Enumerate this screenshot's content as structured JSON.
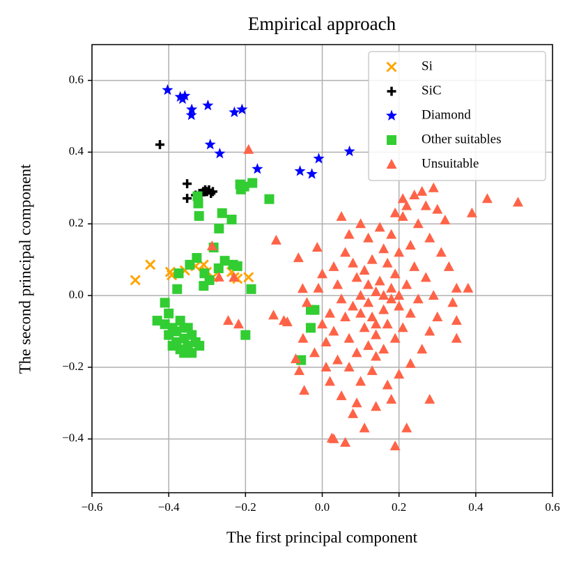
{
  "chart_data": {
    "type": "scatter",
    "title": "Empirical approach",
    "x_label": "The first principal component",
    "y_label": "The second principal component",
    "xlim": [
      -0.6,
      0.6
    ],
    "ylim": [
      -0.55,
      0.7
    ],
    "xticks": [
      {
        "value": -0.6,
        "label": "−0.6"
      },
      {
        "value": -0.4,
        "label": "−0.4"
      },
      {
        "value": -0.2,
        "label": "−0.2"
      },
      {
        "value": 0.0,
        "label": "0.0"
      },
      0.2,
      0.4,
      0.6
    ],
    "yticks": [
      {
        "value": -0.4,
        "label": "−0.4"
      },
      {
        "value": -0.2,
        "label": "−0.2"
      },
      {
        "value": 0.0,
        "label": "0.0"
      },
      0.2,
      0.4,
      0.6
    ],
    "grid": true,
    "legend": "upper right",
    "series": [
      {
        "name": "Si",
        "color": "#ffa500",
        "marker": "x",
        "x": [
          -0.487,
          -0.448,
          -0.396,
          -0.392,
          -0.358,
          -0.33,
          -0.309,
          -0.301,
          -0.285,
          -0.236,
          -0.229,
          -0.221,
          -0.192
        ],
        "values": [
          0.043,
          0.086,
          0.066,
          0.057,
          0.07,
          0.082,
          0.086,
          0.066,
          0.051,
          0.066,
          0.051,
          0.047,
          0.051
        ]
      },
      {
        "name": "SiC",
        "color": "#000000",
        "marker": "plus",
        "x": [
          -0.423,
          -0.352,
          -0.352,
          -0.33,
          -0.32,
          -0.31,
          -0.3,
          -0.295,
          -0.29,
          -0.285,
          -0.315,
          -0.305
        ],
        "values": [
          0.421,
          0.312,
          0.271,
          0.28,
          0.285,
          0.29,
          0.29,
          0.295,
          0.285,
          0.29,
          0.28,
          0.295
        ]
      },
      {
        "name": "Diamond",
        "color": "#0000ff",
        "marker": "star",
        "x": [
          -0.403,
          -0.37,
          -0.358,
          -0.364,
          -0.34,
          -0.341,
          -0.298,
          -0.292,
          -0.267,
          -0.229,
          -0.209,
          -0.169,
          -0.058,
          -0.027,
          -0.009,
          0.071
        ],
        "values": [
          0.573,
          0.554,
          0.557,
          0.548,
          0.519,
          0.503,
          0.53,
          0.421,
          0.396,
          0.511,
          0.519,
          0.353,
          0.347,
          0.339,
          0.382,
          0.402
        ]
      },
      {
        "name": "Other suitables",
        "color": "#32cd32",
        "marker": "square",
        "x": [
          -0.323,
          -0.321,
          -0.325,
          -0.261,
          -0.236,
          -0.269,
          -0.214,
          -0.203,
          -0.182,
          -0.138,
          -0.212,
          -0.327,
          -0.345,
          -0.374,
          -0.378,
          -0.307,
          -0.309,
          -0.294,
          -0.283,
          -0.254,
          -0.232,
          -0.221,
          -0.185,
          -0.27,
          -0.43,
          -0.41,
          -0.4,
          -0.41,
          -0.4,
          -0.39,
          -0.38,
          -0.37,
          -0.36,
          -0.35,
          -0.35,
          -0.34,
          -0.33,
          -0.32,
          -0.36,
          -0.38,
          -0.37,
          -0.39,
          -0.34,
          -0.36,
          -0.2,
          -0.03,
          -0.02,
          -0.03,
          -0.055
        ],
        "values": [
          0.257,
          0.222,
          0.277,
          0.23,
          0.212,
          0.187,
          0.31,
          0.304,
          0.314,
          0.269,
          0.296,
          0.105,
          0.086,
          0.062,
          0.018,
          0.062,
          0.027,
          0.043,
          0.134,
          0.097,
          0.086,
          0.082,
          0.018,
          0.076,
          -0.07,
          -0.02,
          -0.05,
          -0.08,
          -0.11,
          -0.09,
          -0.13,
          -0.15,
          -0.12,
          -0.09,
          -0.14,
          -0.16,
          -0.13,
          -0.14,
          -0.16,
          -0.1,
          -0.07,
          -0.14,
          -0.11,
          -0.09,
          -0.11,
          -0.04,
          -0.04,
          -0.09,
          -0.18
        ]
      },
      {
        "name": "Unsuitable",
        "color": "#ff6347",
        "marker": "triangle",
        "x": [
          -0.192,
          -0.287,
          -0.269,
          -0.23,
          -0.245,
          -0.218,
          -0.127,
          -0.12,
          -0.091,
          -0.062,
          -0.051,
          -0.013,
          -0.047,
          -0.069,
          0.025,
          0.43,
          0.51,
          0.39,
          0.38,
          0.28,
          0.19,
          0.22,
          0.06,
          0.03,
          0.11,
          0.08,
          0.35,
          0.35,
          0.29,
          0.26,
          0.24,
          0.21,
          0.1,
          0.12,
          0.14,
          0.16,
          0.18,
          0.13,
          0.11,
          0.17,
          0.2,
          0.15,
          0.09,
          0.08,
          0.06,
          0.05,
          0.04,
          0.02,
          0.03,
          0.01,
          0.0,
          0.07,
          0.09,
          0.12,
          0.14,
          0.16,
          0.19,
          0.21,
          0.23,
          0.25,
          0.22,
          0.19,
          0.17,
          0.13,
          0.11,
          0.08,
          0.06,
          0.03,
          0.0,
          -0.01,
          0.24,
          0.27,
          0.29,
          0.3,
          0.28,
          0.26,
          0.23,
          0.2,
          0.17,
          0.13,
          0.1,
          0.07,
          0.04,
          0.02,
          0.05,
          0.09,
          0.14,
          0.18,
          0.12,
          0.15,
          0.18,
          0.21,
          0.23,
          0.2,
          0.16,
          0.1,
          0.07,
          0.05,
          0.25,
          0.28,
          0.31,
          0.33,
          0.32,
          0.3,
          0.27,
          0.22,
          0.19,
          0.14,
          -0.04,
          -0.05,
          -0.06,
          -0.02,
          0.01,
          0.35,
          0.34,
          -0.1,
          0.16,
          0.18,
          0.12,
          0.14,
          0.2,
          0.1
        ],
        "values": [
          0.407,
          0.138,
          0.051,
          0.051,
          -0.07,
          -0.08,
          -0.055,
          0.154,
          -0.074,
          0.105,
          0.019,
          0.134,
          -0.265,
          -0.177,
          -0.398,
          0.27,
          0.26,
          0.23,
          0.02,
          -0.29,
          -0.42,
          -0.37,
          -0.41,
          -0.4,
          -0.37,
          -0.33,
          -0.12,
          -0.07,
          0.3,
          0.29,
          0.28,
          0.27,
          0.0,
          -0.02,
          0.01,
          -0.04,
          0.02,
          -0.06,
          -0.09,
          -0.08,
          -0.03,
          0.04,
          0.05,
          -0.03,
          -0.06,
          -0.01,
          0.03,
          -0.05,
          -0.1,
          -0.13,
          -0.08,
          -0.12,
          -0.16,
          -0.14,
          -0.11,
          -0.15,
          -0.12,
          -0.09,
          -0.05,
          -0.01,
          0.03,
          0.06,
          0.09,
          0.1,
          0.07,
          0.09,
          0.12,
          0.08,
          0.06,
          0.02,
          0.08,
          0.05,
          0.0,
          -0.06,
          -0.1,
          -0.15,
          -0.19,
          -0.22,
          -0.25,
          -0.21,
          -0.24,
          -0.2,
          -0.18,
          -0.24,
          -0.28,
          -0.3,
          -0.31,
          -0.29,
          0.16,
          0.19,
          0.17,
          0.22,
          0.14,
          0.12,
          0.13,
          0.2,
          0.17,
          0.22,
          0.2,
          0.16,
          0.12,
          0.08,
          0.21,
          0.24,
          0.25,
          0.25,
          0.23,
          -0.17,
          -0.02,
          -0.12,
          -0.21,
          -0.16,
          -0.2,
          0.02,
          -0.02,
          -0.07,
          0.0,
          -0.01,
          0.03,
          -0.08,
          0.0,
          -0.05
        ]
      }
    ]
  }
}
